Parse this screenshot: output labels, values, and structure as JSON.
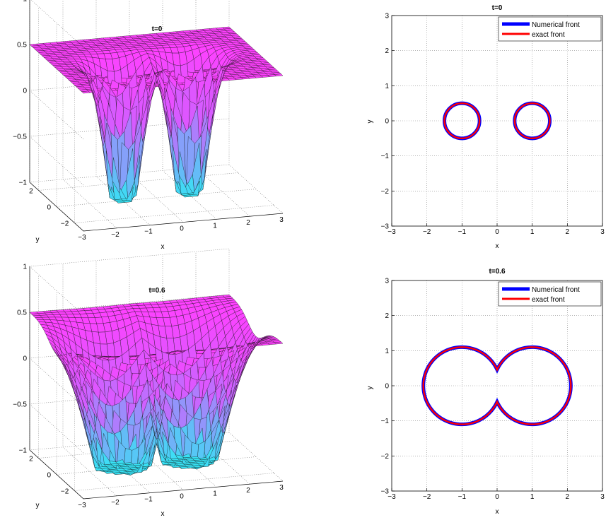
{
  "chart_data": [
    {
      "type": "surface",
      "title": "t=0",
      "xlabel": "x",
      "ylabel": "y",
      "zlabel": "",
      "xlim": [
        -3,
        3
      ],
      "ylim": [
        -3,
        3
      ],
      "zlim": [
        -1,
        1
      ],
      "xticks": [
        "−3",
        "−2",
        "−1",
        "0",
        "1",
        "2",
        "3"
      ],
      "yticks": [
        "−2",
        "0",
        "2"
      ],
      "zticks": [
        "−1",
        "−0.5",
        "0",
        "0.5",
        "1"
      ],
      "plateau": 0.5,
      "wells": [
        {
          "cx": -1,
          "cy": 0,
          "depth": -0.85
        },
        {
          "cx": 1,
          "cy": 0,
          "depth": -0.85
        }
      ],
      "colormap": [
        "#37e2f4",
        "#d060ff",
        "#ff40ff"
      ]
    },
    {
      "type": "line",
      "title": "t=0",
      "xlabel": "x",
      "ylabel": "y",
      "xlim": [
        -3,
        3
      ],
      "ylim": [
        -3,
        3
      ],
      "xticks": [
        "−3",
        "−2",
        "−1",
        "0",
        "1",
        "2",
        "3"
      ],
      "yticks": [
        "−3",
        "−2",
        "−1",
        "0",
        "1",
        "2",
        "3"
      ],
      "grid": true,
      "legend": "top-right",
      "series": [
        {
          "name": "Numerical front",
          "color": "#0000ff",
          "shape": "two-circles",
          "centers": [
            [
              -1,
              0
            ],
            [
              1,
              0
            ]
          ],
          "radius": 0.5
        },
        {
          "name": "exact front",
          "color": "#ff0000",
          "shape": "two-circles",
          "centers": [
            [
              -1,
              0
            ],
            [
              1,
              0
            ]
          ],
          "radius": 0.5
        }
      ]
    },
    {
      "type": "surface",
      "title": "t=0.6",
      "xlabel": "x",
      "ylabel": "y",
      "zlabel": "",
      "xlim": [
        -3,
        3
      ],
      "ylim": [
        -3,
        3
      ],
      "zlim": [
        -1,
        1
      ],
      "xticks": [
        "−3",
        "−2",
        "−1",
        "0",
        "1",
        "2",
        "3"
      ],
      "yticks": [
        "−2",
        "0",
        "2"
      ],
      "zticks": [
        "−1",
        "−0.5",
        "0",
        "0.5",
        "1"
      ],
      "plateau": 0.5,
      "wells": [
        {
          "cx": -1,
          "cy": 0,
          "depth": -1.0
        },
        {
          "cx": 1,
          "cy": 0,
          "depth": -1.0
        }
      ],
      "colormap": [
        "#37e2f4",
        "#d060ff",
        "#ff40ff"
      ]
    },
    {
      "type": "line",
      "title": "t=0.6",
      "xlabel": "x",
      "ylabel": "y",
      "xlim": [
        -3,
        3
      ],
      "ylim": [
        -3,
        3
      ],
      "xticks": [
        "−3",
        "−2",
        "−1",
        "0",
        "1",
        "2",
        "3"
      ],
      "yticks": [
        "−3",
        "−2",
        "−1",
        "0",
        "1",
        "2",
        "3"
      ],
      "grid": true,
      "legend": "top-right",
      "series": [
        {
          "name": "Numerical front",
          "color": "#0000ff",
          "shape": "two-circle-union",
          "centers": [
            [
              -1,
              0
            ],
            [
              1,
              0
            ]
          ],
          "radius": 1.1
        },
        {
          "name": "exact front",
          "color": "#ff0000",
          "shape": "two-circle-union",
          "centers": [
            [
              -1,
              0
            ],
            [
              1,
              0
            ]
          ],
          "radius": 1.1
        }
      ]
    }
  ]
}
